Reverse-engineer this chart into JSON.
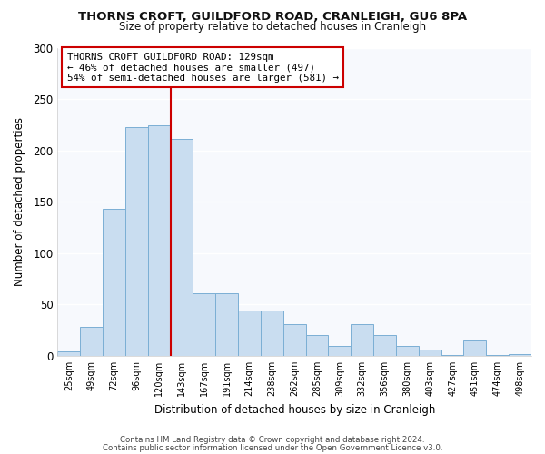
{
  "title1": "THORNS CROFT, GUILDFORD ROAD, CRANLEIGH, GU6 8PA",
  "title2": "Size of property relative to detached houses in Cranleigh",
  "xlabel": "Distribution of detached houses by size in Cranleigh",
  "ylabel": "Number of detached properties",
  "bar_labels": [
    "25sqm",
    "49sqm",
    "72sqm",
    "96sqm",
    "120sqm",
    "143sqm",
    "167sqm",
    "191sqm",
    "214sqm",
    "238sqm",
    "262sqm",
    "285sqm",
    "309sqm",
    "332sqm",
    "356sqm",
    "380sqm",
    "403sqm",
    "427sqm",
    "451sqm",
    "474sqm",
    "498sqm"
  ],
  "bar_values": [
    4,
    28,
    143,
    223,
    224,
    211,
    61,
    61,
    44,
    44,
    31,
    20,
    10,
    31,
    20,
    10,
    6,
    1,
    16,
    1,
    2
  ],
  "bar_color": "#c9ddf0",
  "bar_edge_color": "#7bafd4",
  "vline_pos": 4.5,
  "vline_color": "#cc0000",
  "annotation_text": "THORNS CROFT GUILDFORD ROAD: 129sqm\n← 46% of detached houses are smaller (497)\n54% of semi-detached houses are larger (581) →",
  "annotation_box_facecolor": "#ffffff",
  "annotation_box_edgecolor": "#cc0000",
  "ylim": [
    0,
    300
  ],
  "yticks": [
    0,
    50,
    100,
    150,
    200,
    250,
    300
  ],
  "footer1": "Contains HM Land Registry data © Crown copyright and database right 2024.",
  "footer2": "Contains public sector information licensed under the Open Government Licence v3.0.",
  "fig_facecolor": "#ffffff",
  "axes_facecolor": "#f7f9fd",
  "grid_color": "#ffffff",
  "title1_fontsize": 9.5,
  "title2_fontsize": 8.5,
  "xlabel_fontsize": 8.5,
  "ylabel_fontsize": 8.5,
  "xtick_fontsize": 7.0,
  "ytick_fontsize": 8.5,
  "footer_fontsize": 6.2,
  "annotation_fontsize": 7.8
}
